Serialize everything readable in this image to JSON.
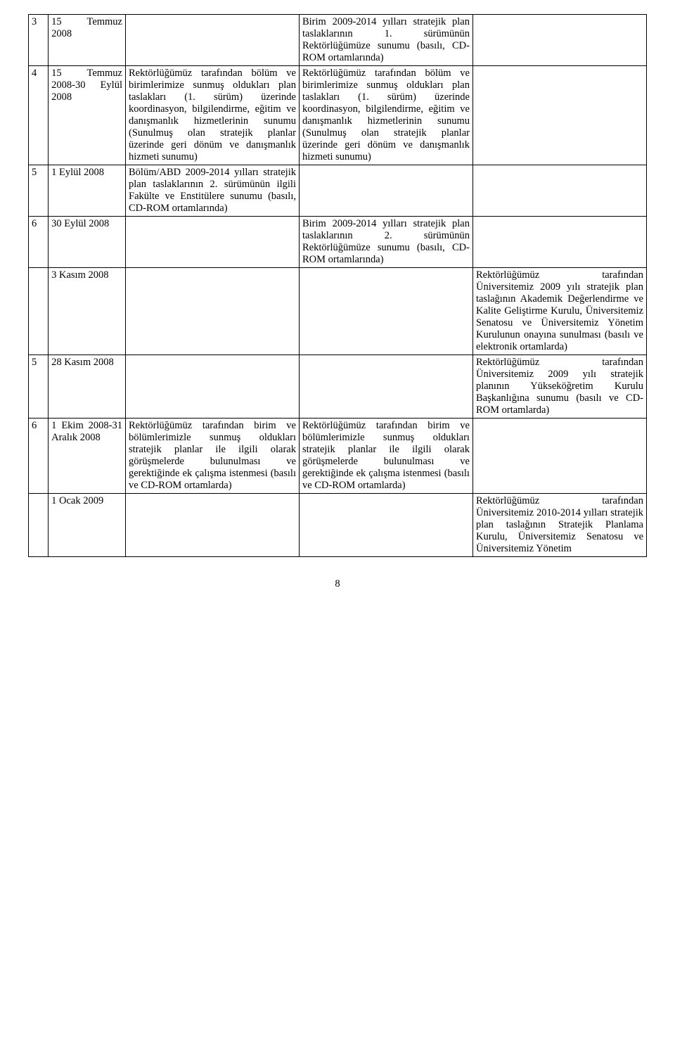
{
  "rows": [
    {
      "num": "3",
      "date": "15 Temmuz 2008",
      "col2": "",
      "col3": "Birim 2009-2014 yılları stratejik plan taslaklarının 1. sürümünün Rektörlüğümüze sunumu (basılı, CD-ROM ortamlarında)",
      "col4": ""
    },
    {
      "num": "4",
      "date": "15 Temmuz 2008-30 Eylül 2008",
      "col2": "Rektörlüğümüz tarafından bölüm ve birimlerimize sunmuş oldukları plan taslakları (1. sürüm) üzerinde koordinasyon, bilgilendirme, eğitim ve danışmanlık hizmetlerinin sunumu\n(Sunulmuş olan stratejik planlar üzerinde geri dönüm ve danışmanlık hizmeti sunumu)",
      "col3": "Rektörlüğümüz tarafından bölüm ve birimlerimize sunmuş oldukları plan taslakları (1. sürüm) üzerinde koordinasyon, bilgilendirme, eğitim ve danışmanlık hizmetlerinin sunumu\n(Sunulmuş olan stratejik planlar üzerinde geri dönüm ve danışmanlık hizmeti sunumu)",
      "col4": ""
    },
    {
      "num": "5",
      "date": "1 Eylül 2008",
      "col2": "Bölüm/ABD 2009-2014 yılları stratejik plan taslaklarının 2. sürümünün ilgili Fakülte ve Enstitülere sunumu (basılı, CD-ROM ortamlarında)",
      "col3": "",
      "col4": ""
    },
    {
      "num": "6",
      "date": "30 Eylül 2008",
      "col2": "",
      "col3": "Birim 2009-2014 yılları stratejik plan taslaklarının 2. sürümünün Rektörlüğümüze sunumu (basılı, CD-ROM ortamlarında)",
      "col4": ""
    },
    {
      "num": "",
      "date": "3 Kasım 2008",
      "col2": "",
      "col3": "",
      "col4": "Rektörlüğümüz tarafından Üniversitemiz 2009 yılı stratejik plan taslağının Akademik Değerlendirme ve Kalite Geliştirme Kurulu, Üniversitemiz Senatosu ve Üniversitemiz Yönetim Kurulunun onayına sunulması (basılı ve elektronik ortamlarda)"
    },
    {
      "num": "5",
      "date": "28 Kasım 2008",
      "col2": "",
      "col3": "",
      "col4": "Rektörlüğümüz tarafından Üniversitemiz 2009 yılı stratejik planının Yükseköğretim Kurulu Başkanlığına sunumu (basılı ve CD-ROM ortamlarda)"
    },
    {
      "num": "6",
      "date": "1 Ekim 2008-31 Aralık 2008",
      "col2": "Rektörlüğümüz tarafından birim ve bölümlerimizle sunmuş oldukları stratejik planlar ile ilgili olarak görüşmelerde bulunulması ve gerektiğinde ek çalışma istenmesi (basılı ve CD-ROM ortamlarda)",
      "col3": "Rektörlüğümüz tarafından birim ve bölümlerimizle sunmuş oldukları stratejik planlar ile ilgili olarak görüşmelerde bulunulması ve gerektiğinde ek çalışma istenmesi (basılı ve CD-ROM ortamlarda)",
      "col4": ""
    },
    {
      "num": "",
      "date": "1 Ocak 2009",
      "col2": "",
      "col3": "",
      "col4": "Rektörlüğümüz tarafından Üniversitemiz 2010-2014 yılları stratejik plan taslağının Stratejik Planlama Kurulu, Üniversitemiz Senatosu ve Üniversitemiz Yönetim"
    }
  ],
  "page_number": "8"
}
